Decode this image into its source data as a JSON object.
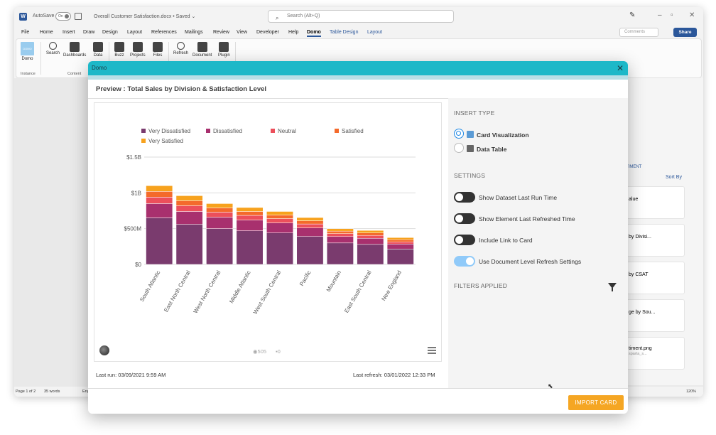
{
  "word": {
    "autosave_label": "AutoSave",
    "autosave_state": "On",
    "doc_title": "Overall Customer Satisfaction.docx • Saved ⌄",
    "search_placeholder": "Search (Alt+Q)",
    "menu_tabs": [
      "File",
      "Home",
      "Insert",
      "Draw",
      "Design",
      "Layout",
      "References",
      "Mailings",
      "Review",
      "View",
      "Developer",
      "Help",
      "Domo",
      "Table Design",
      "Layout"
    ],
    "comments_label": "Comments",
    "share_label": "Share",
    "ribbon": {
      "buttons": [
        "Domo",
        "Search",
        "Dashboards",
        "Data",
        "Buzz",
        "Projects",
        "Files",
        "Refresh",
        "Document",
        "Plugin"
      ],
      "groups": [
        "Instance",
        "Content"
      ]
    },
    "status": {
      "page": "Page 1 of 2",
      "words": "35 words",
      "lang": "Eng",
      "zoom": "120%"
    },
    "side_pane": {
      "tab": "...TIMENT",
      "sort_label": "Sort By",
      "items": [
        "alue",
        "by Divisi...",
        "by CSAT",
        "ge by Sou...",
        "timent.png",
        "sparta_s..."
      ]
    }
  },
  "modal": {
    "title": "Domo",
    "preview_title": "Preview : Total Sales by Division & Satisfaction Level",
    "views": "505",
    "comments": "0",
    "last_run": "Last run: 03/09/2021 9:59 AM",
    "last_refresh": "Last refresh: 03/01/2022 12:33 PM",
    "insert_type_heading": "INSERT TYPE",
    "radio_card": "Card Visualization",
    "radio_table": "Data Table",
    "settings_heading": "SETTINGS",
    "toggles": [
      {
        "label": "Show Dataset Last Run Time",
        "on": false
      },
      {
        "label": "Show Element Last Refreshed Time",
        "on": false
      },
      {
        "label": "Include Link to Card",
        "on": false
      },
      {
        "label": "Use Document Level Refresh Settings",
        "on": true
      }
    ],
    "filters_heading": "FILTERS APPLIED",
    "import_button": "IMPORT CARD"
  },
  "chart_data": {
    "type": "bar",
    "stacked": true,
    "categories": [
      "South Atlantic",
      "East North Central",
      "West North Central",
      "Middle Atlantic",
      "West South Central",
      "Pacific",
      "Mountain",
      "East South Central",
      "New England"
    ],
    "series": [
      {
        "name": "Very Dissatisfied",
        "color": "#7a3b6e",
        "values": [
          650,
          560,
          500,
          470,
          440,
          390,
          300,
          280,
          215
        ]
      },
      {
        "name": "Dissatisfied",
        "color": "#a8306e",
        "values": [
          200,
          180,
          160,
          150,
          140,
          120,
          90,
          85,
          70
        ]
      },
      {
        "name": "Neutral",
        "color": "#ec4f5b",
        "values": [
          90,
          80,
          70,
          65,
          60,
          55,
          40,
          40,
          30
        ]
      },
      {
        "name": "Satisfied",
        "color": "#f46a2b",
        "values": [
          80,
          70,
          60,
          55,
          50,
          45,
          35,
          35,
          30
        ]
      },
      {
        "name": "Very Satisfied",
        "color": "#f7a21d",
        "values": [
          80,
          70,
          60,
          55,
          50,
          45,
          35,
          35,
          30
        ]
      }
    ],
    "ylim": [
      0,
      1500
    ],
    "yticks": [
      {
        "value": 0,
        "label": "$0"
      },
      {
        "value": 500,
        "label": "$500M"
      },
      {
        "value": 1000,
        "label": "$1B"
      },
      {
        "value": 1500,
        "label": "$1.5B"
      }
    ],
    "grid": true,
    "legend_position": "top-left"
  }
}
